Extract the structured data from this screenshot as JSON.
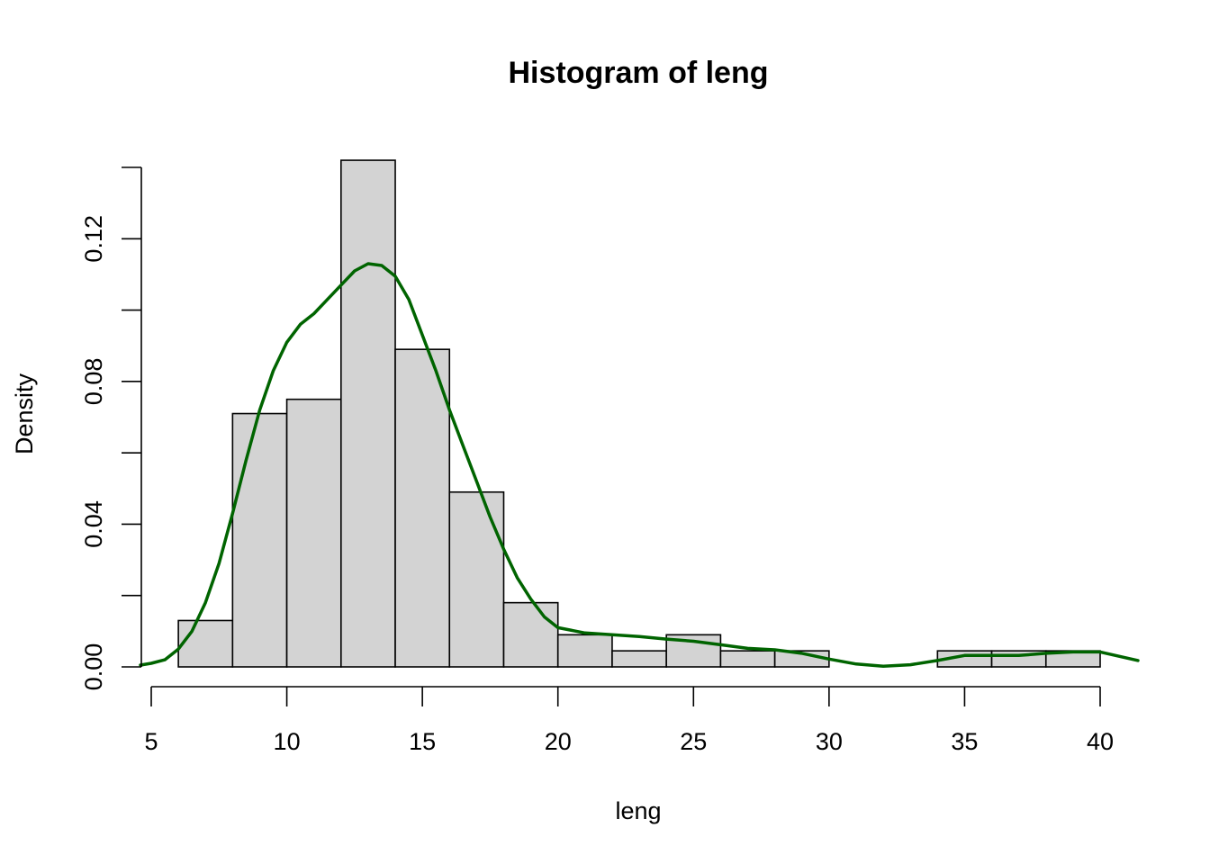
{
  "chart_data": {
    "type": "bar",
    "title": "Histogram of leng",
    "xlabel": "leng",
    "ylabel": "Density",
    "xlim": [
      5,
      41.4
    ],
    "ylim": [
      0,
      0.14
    ],
    "x_ticks": [
      5,
      10,
      15,
      20,
      25,
      30,
      35,
      40
    ],
    "x_tick_labels": [
      "5",
      "10",
      "15",
      "20",
      "25",
      "30",
      "35",
      "40"
    ],
    "y_ticks": [
      0,
      0.02,
      0.04,
      0.06,
      0.08,
      0.1,
      0.12,
      0.14
    ],
    "y_tick_labels": [
      "0.00",
      "",
      "0.04",
      "",
      "0.08",
      "",
      "0.12",
      ""
    ],
    "grid": false,
    "bins": [
      {
        "x0": 6,
        "x1": 8,
        "density": 0.013
      },
      {
        "x0": 8,
        "x1": 10,
        "density": 0.071
      },
      {
        "x0": 10,
        "x1": 12,
        "density": 0.075
      },
      {
        "x0": 12,
        "x1": 14,
        "density": 0.142
      },
      {
        "x0": 14,
        "x1": 16,
        "density": 0.089
      },
      {
        "x0": 16,
        "x1": 18,
        "density": 0.049
      },
      {
        "x0": 18,
        "x1": 20,
        "density": 0.018
      },
      {
        "x0": 20,
        "x1": 22,
        "density": 0.009
      },
      {
        "x0": 22,
        "x1": 24,
        "density": 0.0045
      },
      {
        "x0": 24,
        "x1": 26,
        "density": 0.009
      },
      {
        "x0": 26,
        "x1": 28,
        "density": 0.0045
      },
      {
        "x0": 28,
        "x1": 30,
        "density": 0.0045
      },
      {
        "x0": 30,
        "x1": 32,
        "density": 0
      },
      {
        "x0": 32,
        "x1": 34,
        "density": 0
      },
      {
        "x0": 34,
        "x1": 36,
        "density": 0.0045
      },
      {
        "x0": 36,
        "x1": 38,
        "density": 0.0045
      },
      {
        "x0": 38,
        "x1": 40,
        "density": 0.0045
      }
    ],
    "density_curve": {
      "x": [
        4.6,
        5,
        5.5,
        6,
        6.5,
        7,
        7.5,
        8,
        8.5,
        9,
        9.5,
        10,
        10.5,
        11,
        11.5,
        12,
        12.5,
        13,
        13.5,
        14,
        14.5,
        15,
        15.5,
        16,
        16.5,
        17,
        17.5,
        18,
        18.5,
        19,
        19.5,
        20,
        21,
        22,
        23,
        24,
        25,
        26,
        27,
        28,
        29,
        30,
        31,
        32,
        33,
        34,
        35,
        36,
        37,
        38,
        39,
        40,
        41.4
      ],
      "y": [
        0.0005,
        0.001,
        0.002,
        0.005,
        0.01,
        0.018,
        0.029,
        0.043,
        0.058,
        0.072,
        0.083,
        0.091,
        0.096,
        0.099,
        0.103,
        0.107,
        0.111,
        0.113,
        0.1125,
        0.1095,
        0.103,
        0.093,
        0.083,
        0.072,
        0.062,
        0.052,
        0.042,
        0.033,
        0.025,
        0.019,
        0.014,
        0.011,
        0.0095,
        0.009,
        0.0085,
        0.0078,
        0.0072,
        0.0062,
        0.0052,
        0.0048,
        0.0038,
        0.0022,
        0.0008,
        0.0002,
        0.0006,
        0.0018,
        0.0032,
        0.0032,
        0.0032,
        0.0038,
        0.0042,
        0.0042,
        0.0018
      ]
    },
    "colors": {
      "bar_fill": "#d3d3d3",
      "bar_stroke": "#000000",
      "density_line": "#006400"
    }
  }
}
